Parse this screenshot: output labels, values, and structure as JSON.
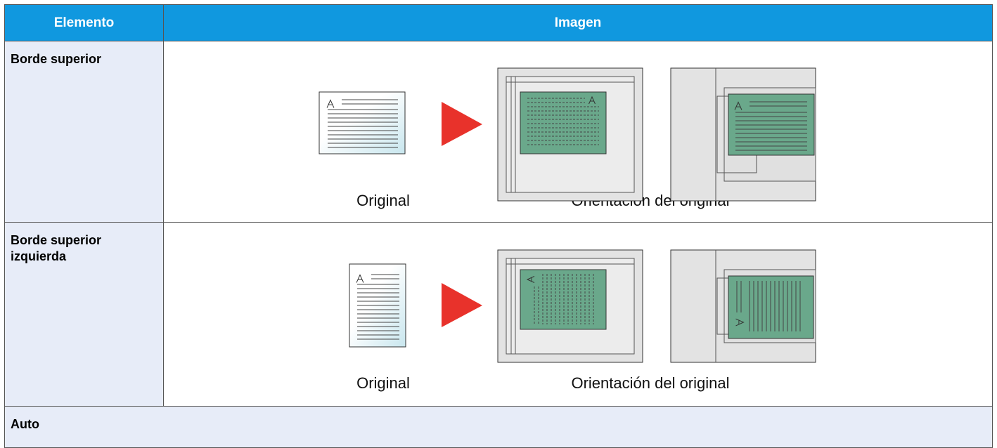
{
  "header": {
    "columns": [
      "Elemento",
      "Imagen"
    ]
  },
  "rows": [
    {
      "item": "Borde superior",
      "captions": [
        "Original",
        "Orientación del original"
      ]
    },
    {
      "item": "Borde superior izquierda",
      "captions": [
        "Original",
        "Orientación del original"
      ]
    }
  ],
  "auto_row": {
    "item": "Auto"
  }
}
